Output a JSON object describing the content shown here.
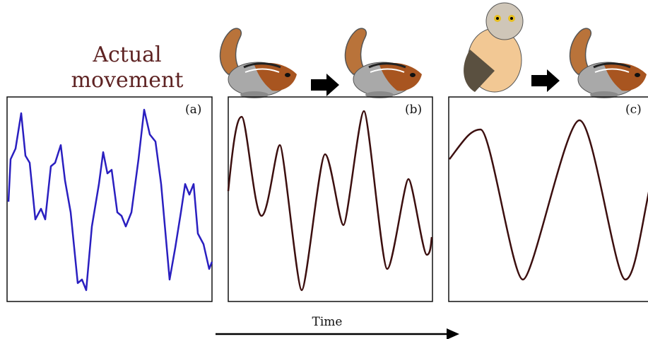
{
  "title": "Actual movement",
  "panels": [
    {
      "label": "(a)"
    },
    {
      "label": "(b)"
    },
    {
      "label": "(c)"
    }
  ],
  "axis_label": "Time"
}
